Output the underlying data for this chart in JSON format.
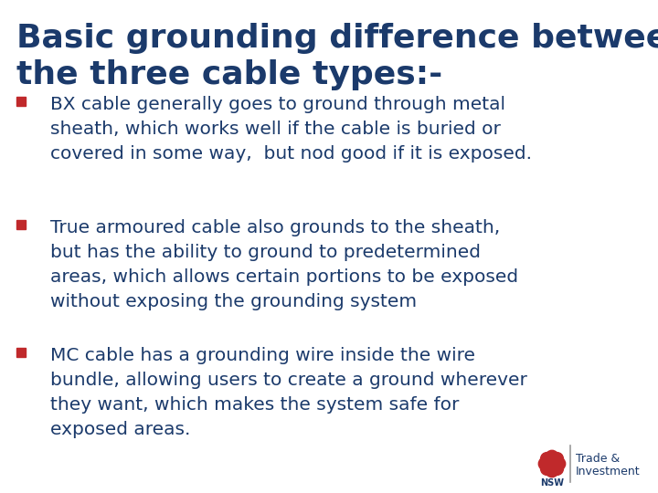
{
  "title_line1": "Basic grounding difference between",
  "title_line2": "the three cable types:-",
  "title_color": "#1b3a6b",
  "title_fontsize": 26,
  "bullet_color": "#c0292b",
  "text_color": "#1b3a6b",
  "body_fontsize": 14.5,
  "background_color": "#ffffff",
  "logo_text1": "Trade &",
  "logo_text2": "Investment",
  "logo_color": "#1b3a6b",
  "lines": [
    [
      "BX cable generally goes to ground through metal",
      "sheath, which works well if the cable is buried or",
      "covered in some way,  but nod good if it is exposed."
    ],
    [
      "True armoured cable also grounds to the sheath,",
      "but has the ability to ground to predetermined",
      "areas, which allows certain portions to be exposed",
      "without exposing the grounding system"
    ],
    [
      "MC cable has a grounding wire inside the wire",
      "bundle, allowing users to create a ground wherever",
      "they want, which makes the system safe for",
      "exposed areas."
    ]
  ]
}
